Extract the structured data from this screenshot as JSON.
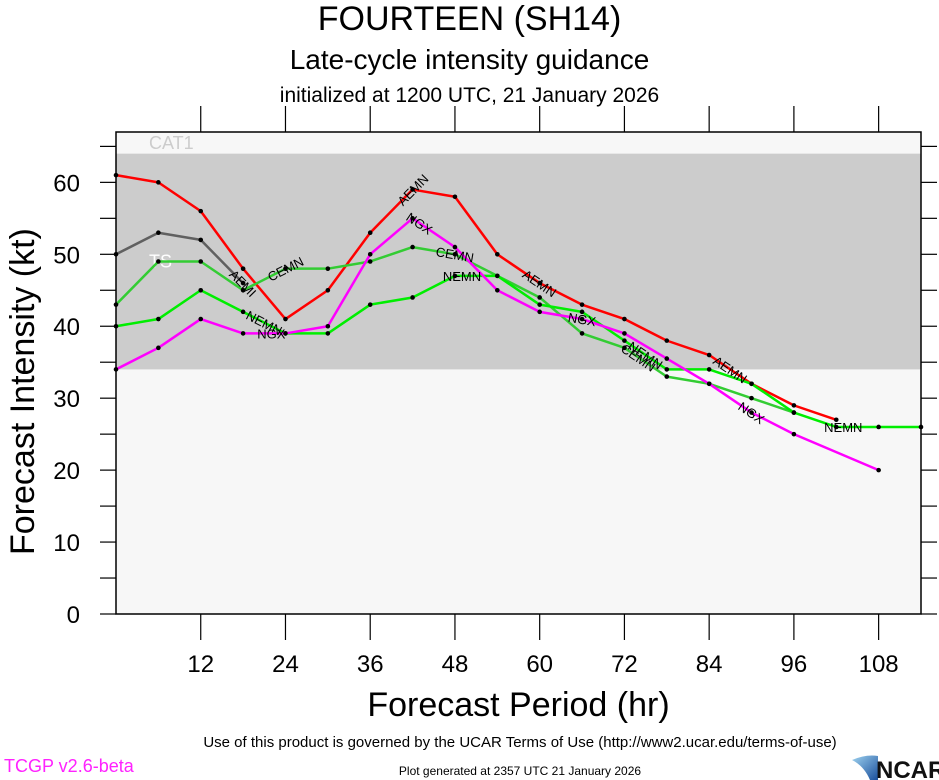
{
  "header": {
    "title": "FOURTEEN (SH14)",
    "subtitle": "Late-cycle intensity guidance",
    "initialized": "initialized at 1200 UTC, 21 January 2026"
  },
  "footer": {
    "terms": "Use of this product is governed by the UCAR Terms of Use (http://www2.ucar.edu/terms-of-use)",
    "version": "TCGP v2.6-beta",
    "generated": "Plot generated at 2357 UTC   21 January 2026",
    "logo_text": "NCAR"
  },
  "chart_data": {
    "type": "line",
    "title": "FOURTEEN (SH14)",
    "subtitle": "Late-cycle intensity guidance",
    "xlabel": "Forecast Period (hr)",
    "ylabel": "Forecast Intensity (kt)",
    "xlim": [
      0,
      114
    ],
    "ylim": [
      0,
      67
    ],
    "xticks": [
      12,
      24,
      36,
      48,
      60,
      72,
      84,
      96,
      108
    ],
    "yticks": [
      0,
      10,
      20,
      30,
      40,
      50,
      60
    ],
    "bands": [
      {
        "name": "TS",
        "from": 34,
        "to": 64,
        "color": "#cccccc",
        "label_color": "#ffffff"
      },
      {
        "name": "CAT1",
        "from": 64,
        "to": 83,
        "color": "#f7f7f7",
        "label_color": "#cccccc"
      }
    ],
    "background_color": "#f7f7f7",
    "series": [
      {
        "name": "AEMI",
        "color": "#606060",
        "label_x": 18,
        "x": [
          0,
          6,
          12,
          18
        ],
        "values": [
          50,
          53,
          52,
          46
        ]
      },
      {
        "name": "AEMN",
        "color": "#ff0000",
        "label_x": [
          42,
          60,
          87
        ],
        "x": [
          0,
          6,
          12,
          18,
          24,
          30,
          36,
          42,
          48,
          54,
          60,
          66,
          72,
          78,
          84,
          90,
          96,
          102
        ],
        "values": [
          61,
          60,
          56,
          48,
          41,
          45,
          53,
          59,
          58,
          50,
          46,
          43,
          41,
          38,
          36,
          32,
          29,
          27
        ]
      },
      {
        "name": "CEMN",
        "color": "#33cc33",
        "label_x": [
          24,
          48,
          74
        ],
        "x": [
          0,
          6,
          12,
          18,
          24,
          30,
          36,
          42,
          48,
          54,
          60,
          66,
          72,
          78,
          84,
          90,
          96
        ],
        "values": [
          43,
          49,
          49,
          45,
          48,
          48,
          49,
          51,
          50,
          47,
          44,
          39,
          37,
          33,
          32,
          30,
          28
        ]
      },
      {
        "name": "NEMN",
        "color": "#00ee00",
        "label_x": [
          21,
          49,
          75,
          103
        ],
        "x": [
          0,
          6,
          12,
          18,
          24,
          30,
          36,
          42,
          48,
          54,
          60,
          66,
          72,
          78,
          84,
          90,
          96,
          102,
          108,
          114
        ],
        "values": [
          40,
          41,
          45,
          42,
          39,
          39,
          43,
          44,
          47,
          47,
          43,
          42,
          38,
          34,
          34,
          32,
          28,
          26,
          26,
          26
        ]
      },
      {
        "name": "NGX",
        "color": "#ff00ff",
        "label_x": [
          22,
          43,
          66,
          90
        ],
        "x": [
          0,
          6,
          12,
          18,
          24,
          30,
          36,
          42,
          48,
          54,
          60,
          66,
          72,
          78,
          84,
          90,
          96,
          108
        ],
        "values": [
          34,
          37,
          41,
          39,
          39,
          40,
          50,
          55,
          51,
          45,
          42,
          41,
          39,
          35.5,
          32,
          28,
          25,
          20
        ]
      }
    ]
  }
}
